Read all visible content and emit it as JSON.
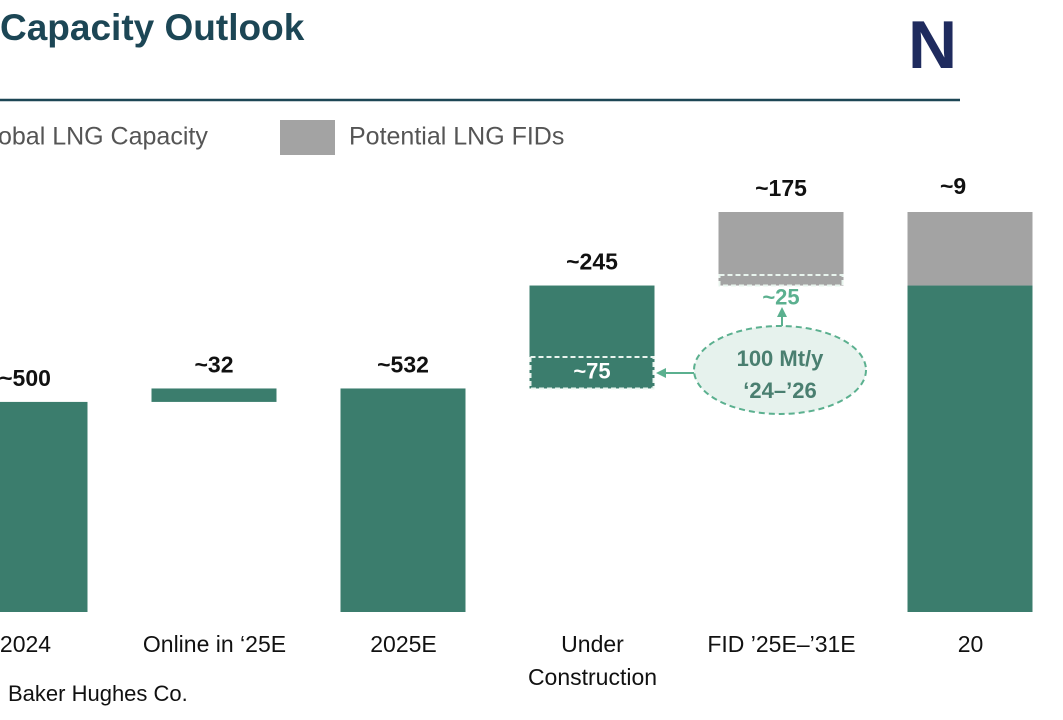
{
  "chart_data": {
    "type": "waterfall",
    "title": "Capacity Outlook",
    "logo": "N",
    "categories": [
      "2024",
      "Online in ‘25E",
      "2025E",
      "Under Construction",
      "FID ’25E–’31E",
      "20"
    ],
    "measure": [
      "absolute",
      "relative",
      "absolute",
      "relative",
      "relative",
      "absolute"
    ],
    "series": [
      {
        "name": "obal LNG Capacity",
        "color": "#3b7d6d",
        "values": [
          500,
          32,
          532,
          245,
          null,
          777
        ],
        "value_labels": [
          "~500",
          "~32",
          "~532",
          "~245",
          null,
          null
        ]
      },
      {
        "name": "Potential LNG FIDs",
        "color": "#a3a3a3",
        "values": [
          null,
          null,
          null,
          null,
          175,
          175
        ],
        "value_labels": [
          null,
          null,
          null,
          null,
          "~175",
          null
        ]
      }
    ],
    "highlights": [
      {
        "category": 3,
        "value": 75,
        "label": "~75"
      },
      {
        "category": 4,
        "value": 25,
        "label": "~25"
      }
    ],
    "callout": [
      "100 Mt/y",
      "‘24–’26"
    ],
    "total_label": "~9",
    "source": "Baker Hughes Co."
  }
}
